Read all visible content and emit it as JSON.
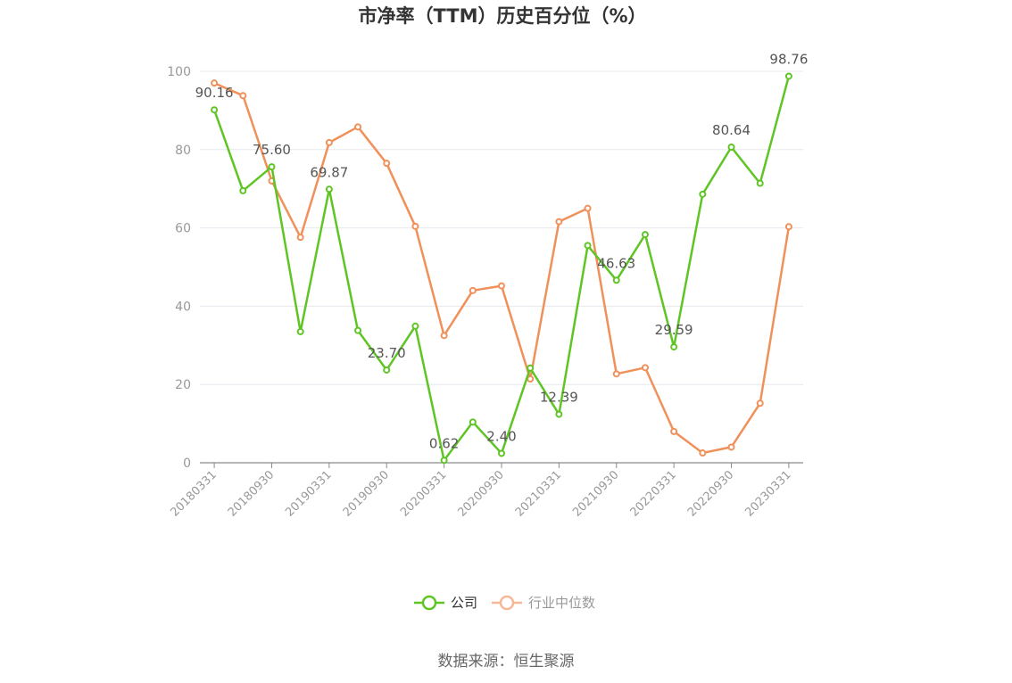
{
  "chart_data": {
    "type": "line",
    "title": "市净率（TTM）历史百分位（%）",
    "source": "数据来源：恒生聚源",
    "ylim": [
      0,
      100
    ],
    "yticks": [
      0,
      20,
      40,
      60,
      80,
      100
    ],
    "x": [
      "20180331",
      "20180630",
      "20180930",
      "20181231",
      "20190331",
      "20190630",
      "20190930",
      "20191231",
      "20200331",
      "20200630",
      "20200930",
      "20201231",
      "20210331",
      "20210630",
      "20210930",
      "20211231",
      "20220331",
      "20220630",
      "20220930",
      "20221231",
      "20230331"
    ],
    "xtick_labels": [
      "20180331",
      "20180930",
      "20190331",
      "20190930",
      "20200331",
      "20200930",
      "20210331",
      "20210930",
      "20220331",
      "20220930",
      "20230331"
    ],
    "grid": true,
    "legend_position": "bottom",
    "series": [
      {
        "name": "公司",
        "color": "#5fc525",
        "values": [
          90.16,
          69.5,
          75.6,
          33.5,
          69.87,
          33.8,
          23.7,
          34.9,
          0.62,
          10.4,
          2.4,
          24.2,
          12.39,
          55.5,
          46.63,
          58.3,
          29.59,
          68.6,
          80.64,
          71.4,
          98.76
        ],
        "labels": {
          "0": "90.16",
          "2": "75.60",
          "4": "69.87",
          "6": "23.70",
          "8": "0.62",
          "10": "2.40",
          "12": "12.39",
          "14": "46.63",
          "16": "29.59",
          "18": "80.64",
          "20": "98.76"
        }
      },
      {
        "name": "行业中位数",
        "color": "#f0905a",
        "values": [
          97.0,
          93.8,
          72.0,
          57.6,
          81.8,
          85.8,
          76.5,
          60.4,
          32.5,
          44.0,
          45.2,
          21.4,
          61.6,
          65.0,
          22.7,
          24.3,
          8.0,
          2.5,
          4.0,
          15.2,
          60.3
        ]
      }
    ]
  }
}
